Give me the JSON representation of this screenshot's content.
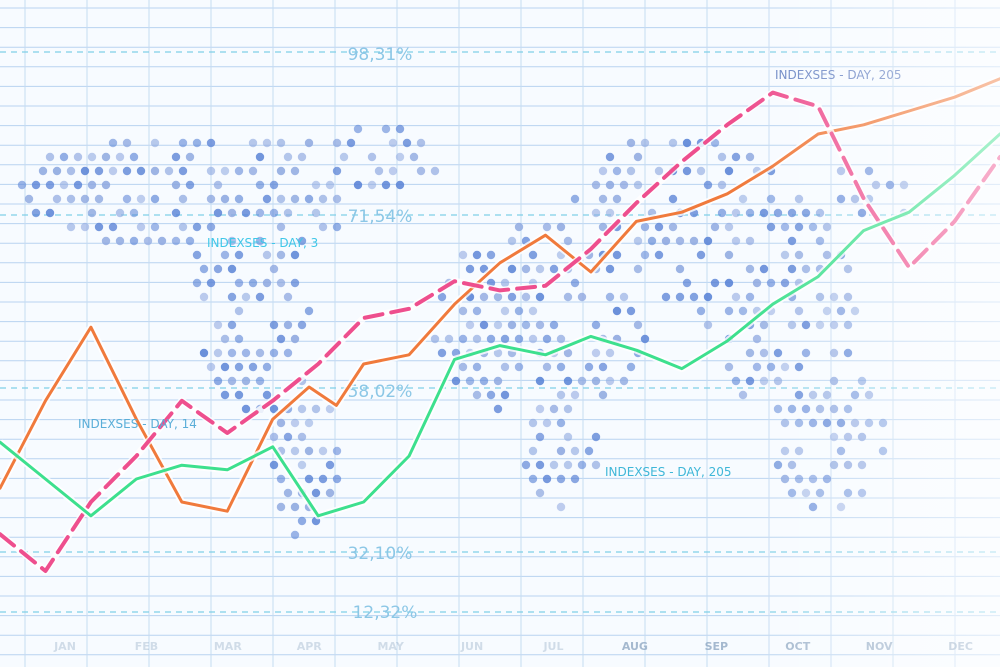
{
  "chart_data": {
    "type": "line",
    "title": "",
    "xlabel": "",
    "ylabel": "",
    "categories": [
      "JAN",
      "FEB",
      "MAR",
      "APR",
      "MAY",
      "JUN",
      "JUL",
      "AUG",
      "SEP",
      "OCT",
      "NOV",
      "DEC"
    ],
    "y_tick_labels": [
      "98,31%",
      "71,54%",
      "58,02%",
      "32,10%",
      "12,32%"
    ],
    "annotations": [
      {
        "text": "INDEXSES - DAY, 3",
        "color": "#3fc7e8"
      },
      {
        "text": "INDEXSES - DAY, 14",
        "color": "#5aaed8"
      },
      {
        "text": "INDEXSES - DAY, 205",
        "color": "#3fb7d8"
      },
      {
        "text": "INDEXSES - DAY, 205",
        "color": "#6b86c4"
      }
    ],
    "series": [
      {
        "color": "#f07a3c",
        "style": "solid",
        "x": [
          0,
          0.5,
          1,
          1.5,
          2,
          2.5,
          3,
          3.4,
          3.7,
          4,
          4.5,
          5,
          5.5,
          6,
          6.5,
          7,
          7.5,
          8,
          8.5,
          9,
          9.5,
          10,
          10.5,
          11
        ],
        "y": [
          33,
          52,
          68,
          48,
          30,
          28,
          48,
          55,
          51,
          60,
          62,
          73,
          82,
          88,
          80,
          91,
          93,
          97,
          103,
          110,
          112,
          115,
          118,
          122
        ]
      },
      {
        "color": "#ee4f8e",
        "style": "dashed",
        "x": [
          0,
          0.5,
          1,
          1.5,
          2,
          2.5,
          3,
          3.5,
          4,
          4.5,
          5,
          5.5,
          6,
          6.5,
          7,
          7.5,
          8,
          8.5,
          9,
          9.5,
          10,
          10.5,
          11
        ],
        "y": [
          23,
          15,
          30,
          40,
          52,
          45,
          52,
          60,
          70,
          72,
          78,
          76,
          77,
          85,
          95,
          104,
          112,
          119,
          116,
          96,
          81,
          91,
          105
        ]
      },
      {
        "color": "#3de08e",
        "style": "solid",
        "x": [
          0,
          0.5,
          1,
          1.5,
          2,
          2.5,
          3,
          3.5,
          4,
          4.5,
          5,
          5.5,
          6,
          6.5,
          7,
          7.5,
          8,
          8.5,
          9,
          9.5,
          10,
          10.5,
          11
        ],
        "y": [
          43,
          35,
          27,
          35,
          38,
          37,
          42,
          27,
          30,
          40,
          61,
          64,
          62,
          66,
          63,
          59,
          65,
          73,
          79,
          89,
          93,
          101,
          110
        ]
      }
    ]
  }
}
